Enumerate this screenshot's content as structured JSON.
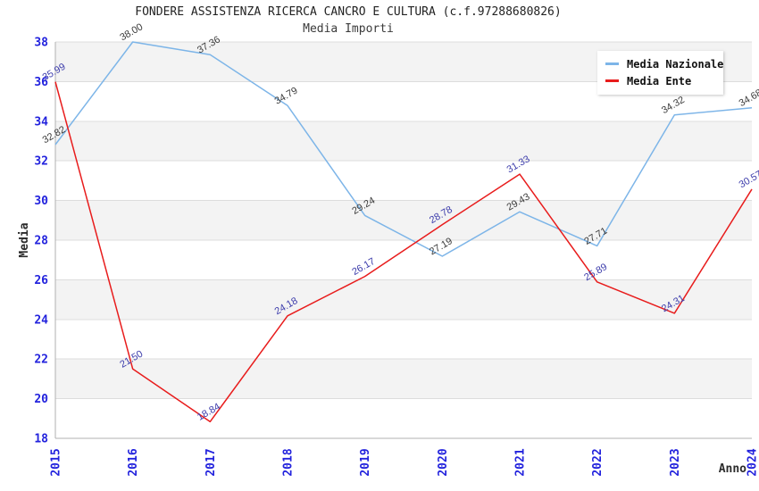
{
  "chart_data": {
    "type": "line",
    "title": "FONDERE ASSISTENZA RICERCA CANCRO E CULTURA (c.f.97288680826)",
    "subtitle": "Media Importi",
    "xlabel": "Anno",
    "ylabel": "Media",
    "x_categories": [
      "2015",
      "2016",
      "2017",
      "2018",
      "2019",
      "2020",
      "2021",
      "2022",
      "2023",
      "2024"
    ],
    "yticks": [
      18,
      20,
      22,
      24,
      26,
      28,
      30,
      32,
      34,
      36,
      38
    ],
    "ylim": [
      18,
      38
    ],
    "grid": "horizontal-bands",
    "legend_position": "top-right",
    "series": [
      {
        "name": "Media Nazionale",
        "color": "#7db5e8",
        "label_color": "#3a3a3a",
        "values": [
          32.82,
          38.0,
          37.36,
          34.79,
          29.24,
          27.19,
          29.43,
          27.71,
          34.32,
          34.68
        ]
      },
      {
        "name": "Media Ente",
        "color": "#e81c1c",
        "label_color": "#3c3cab",
        "values": [
          35.99,
          21.5,
          18.84,
          24.18,
          26.17,
          28.78,
          31.33,
          25.89,
          24.31,
          30.57
        ]
      }
    ],
    "colors": {
      "tick_label": "#2222dd",
      "band_fill": "#f3f3f3",
      "gridline": "#dcdcdc",
      "axis_line": "#b0b0b0",
      "axis_title": "#2b2b2b"
    }
  }
}
